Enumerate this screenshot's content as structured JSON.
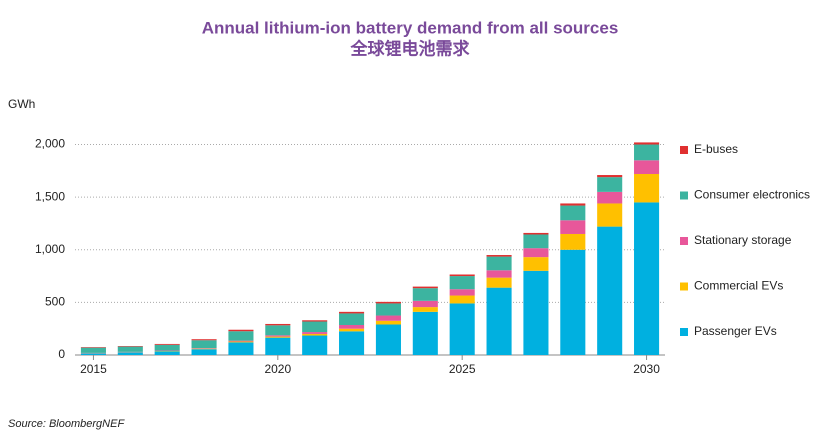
{
  "chart_data": {
    "type": "stacked-bar",
    "title": "Annual lithium-ion battery demand from all sources",
    "subtitle": "全球锂电池需求",
    "y_label": "GWh",
    "source": "Source: BloombergNEF",
    "x": [
      2015,
      2016,
      2017,
      2018,
      2019,
      2020,
      2021,
      2022,
      2023,
      2024,
      2025,
      2026,
      2027,
      2028,
      2029,
      2030
    ],
    "xlim": [
      2014.5,
      2030.5
    ],
    "xticks": [
      2015,
      2020,
      2025,
      2030
    ],
    "ylim": [
      0,
      2100
    ],
    "yticks": [
      0,
      {
        "value": 500,
        "label": "500"
      },
      {
        "value": 1000,
        "label": "1,000"
      },
      {
        "value": 1500,
        "label": "1,500"
      },
      {
        "value": 2000,
        "label": "2,000"
      }
    ],
    "grid": true,
    "legend": "right",
    "series": [
      {
        "name": "Passenger EVs",
        "color": "#00b0e0",
        "values": [
          15,
          25,
          35,
          55,
          120,
          165,
          185,
          225,
          290,
          410,
          490,
          640,
          800,
          1000,
          1220,
          1450
        ]
      },
      {
        "name": "Commercial EVs",
        "color": "#ffc000",
        "values": [
          2,
          2,
          3,
          5,
          8,
          10,
          15,
          25,
          35,
          45,
          75,
          95,
          130,
          150,
          220,
          270
        ]
      },
      {
        "name": "Stationary storage",
        "color": "#e8579a",
        "values": [
          3,
          3,
          4,
          5,
          8,
          12,
          18,
          35,
          50,
          60,
          60,
          70,
          85,
          130,
          110,
          130
        ]
      },
      {
        "name": "Consumer electronics",
        "color": "#3cb4a0",
        "values": [
          50,
          50,
          55,
          75,
          90,
          95,
          100,
          110,
          115,
          120,
          125,
          130,
          130,
          140,
          140,
          150
        ]
      },
      {
        "name": "E-buses",
        "color": "#e03030",
        "values": [
          5,
          5,
          8,
          10,
          14,
          13,
          12,
          15,
          15,
          15,
          15,
          15,
          15,
          20,
          20,
          20
        ]
      }
    ]
  }
}
